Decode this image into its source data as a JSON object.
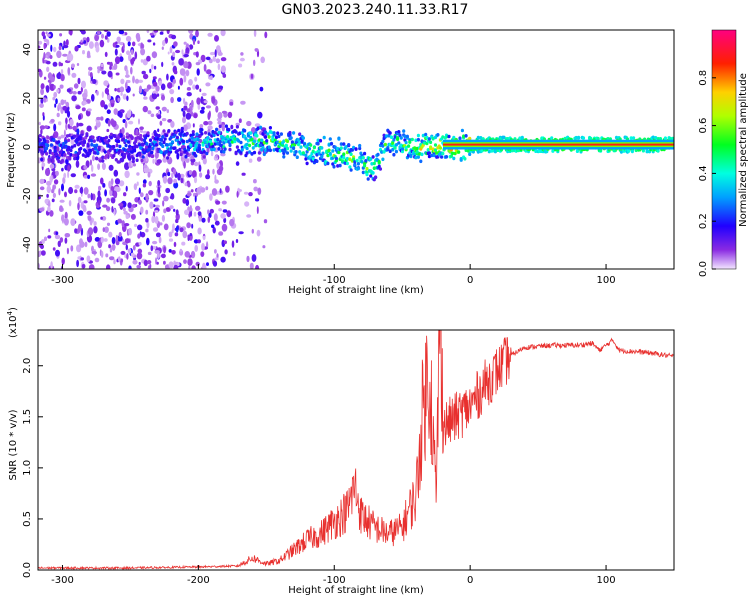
{
  "title": "GN03.2023.240.11.33.R17",
  "colors": {
    "snr_line": "#e8302e",
    "axis": "#000000"
  },
  "chart_data": [
    {
      "type": "heatmap",
      "title": "",
      "xlabel": "Height of straight line (km)",
      "ylabel": "Frequency (Hz)",
      "xlim": [
        -318,
        150
      ],
      "ylim": [
        -50,
        48
      ],
      "xticks": [
        -300,
        -200,
        -100,
        0,
        100
      ],
      "yticks": [
        -40,
        -20,
        0,
        20,
        40
      ],
      "colorbar": {
        "label": "Normalized spectral amplitude",
        "range": [
          0.0,
          1.0
        ],
        "ticks": [
          0.0,
          0.2,
          0.4,
          0.6,
          0.8
        ],
        "colormap": "rainbow (violet → blue → cyan → green → yellow → red → magenta)"
      },
      "ridge": [
        {
          "x": -318,
          "y": 0,
          "amp": 0.25
        },
        {
          "x": -250,
          "y": 0,
          "amp": 0.25
        },
        {
          "x": -180,
          "y": 3,
          "amp": 0.45
        },
        {
          "x": -140,
          "y": 2,
          "amp": 0.5
        },
        {
          "x": -120,
          "y": -1,
          "amp": 0.5
        },
        {
          "x": -90,
          "y": -3,
          "amp": 0.55
        },
        {
          "x": -70,
          "y": -9,
          "amp": 0.55
        },
        {
          "x": -60,
          "y": 3,
          "amp": 0.5
        },
        {
          "x": -40,
          "y": 0,
          "amp": 0.6
        },
        {
          "x": -20,
          "y": 1,
          "amp": 0.7
        },
        {
          "x": 0,
          "y": 1,
          "amp": 0.8
        },
        {
          "x": 50,
          "y": 1,
          "amp": 0.85
        },
        {
          "x": 100,
          "y": 1,
          "amp": 0.85
        },
        {
          "x": 150,
          "y": 1,
          "amp": 0.85
        }
      ]
    },
    {
      "type": "line",
      "title": "",
      "xlabel": "Height of straight line (km)",
      "ylabel": "SNR (10 * v/v)",
      "yscale_label": "(x10",
      "yscale_exp": "4",
      "yscale_close": ")",
      "xlim": [
        -318,
        150
      ],
      "ylim": [
        0,
        2.35
      ],
      "xticks": [
        -300,
        -200,
        -100,
        0,
        100
      ],
      "yticks": [
        0.0,
        0.5,
        1.0,
        1.5,
        2.0
      ],
      "series": [
        {
          "x": [
            -318,
            -250,
            -200,
            -170,
            -160,
            -150,
            -140,
            -120,
            -110,
            -100,
            -90,
            -85,
            -80,
            -70,
            -60,
            -50,
            -45,
            -40,
            -35,
            -30,
            -25,
            -22,
            -20,
            -10,
            0,
            10,
            20,
            30,
            40,
            60,
            80,
            90,
            95,
            100,
            105,
            110,
            130,
            150
          ],
          "y": [
            0.02,
            0.02,
            0.03,
            0.04,
            0.1,
            0.05,
            0.08,
            0.25,
            0.3,
            0.4,
            0.5,
            0.7,
            0.45,
            0.35,
            0.3,
            0.35,
            0.5,
            0.6,
            1.3,
            1.7,
            0.6,
            2.3,
            1.4,
            1.5,
            1.6,
            1.8,
            1.95,
            2.1,
            2.18,
            2.2,
            2.2,
            2.22,
            2.15,
            2.2,
            2.25,
            2.15,
            2.13,
            2.09
          ]
        }
      ]
    }
  ]
}
